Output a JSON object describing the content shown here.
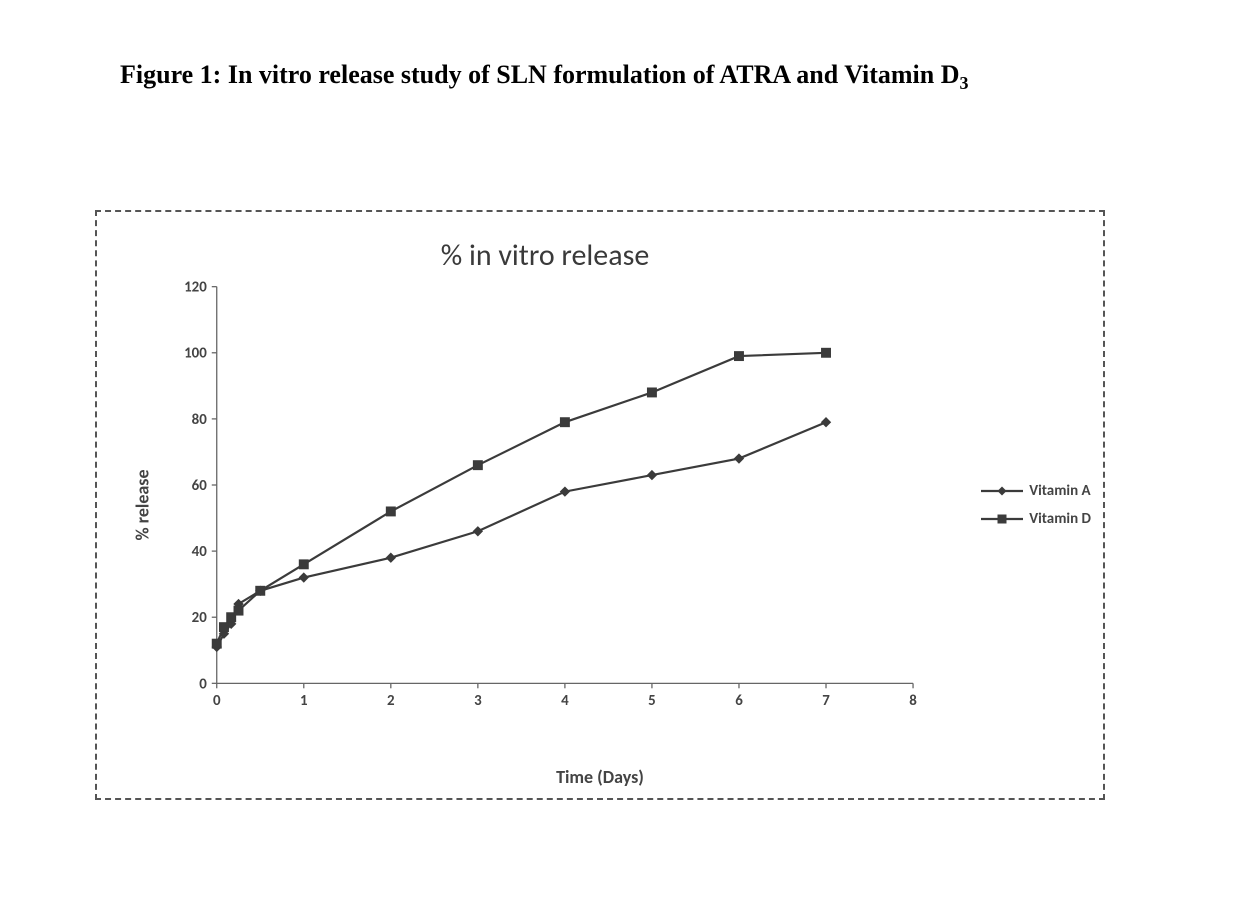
{
  "caption": {
    "prefix": "Figure 1: In vitro release study of SLN formulation of ATRA and Vitamin D",
    "subscript": "3"
  },
  "chart": {
    "type": "line",
    "title": "% in vitro release",
    "title_fontsize": 30,
    "xlabel": "Time (Days)",
    "ylabel": "% release",
    "label_fontsize": 18,
    "xlim": [
      0,
      8
    ],
    "ylim": [
      0,
      120
    ],
    "xtick_step": 1,
    "ytick_step": 20,
    "background_color": "#ffffff",
    "border_dash": "4 3",
    "axis_color": "#666666",
    "tick_length": 5,
    "series": [
      {
        "name": "Vitamin A",
        "marker": "diamond",
        "marker_size": 9,
        "line_width": 2.2,
        "color": "#3b3b3b",
        "x": [
          0,
          0.083,
          0.166,
          0.25,
          0.5,
          1,
          2,
          3,
          4,
          5,
          6,
          7
        ],
        "y": [
          11,
          15,
          18,
          24,
          28,
          32,
          38,
          46,
          58,
          63,
          68,
          79
        ]
      },
      {
        "name": "Vitamin D",
        "marker": "square",
        "marker_size": 9,
        "line_width": 2.2,
        "color": "#3b3b3b",
        "x": [
          0,
          0.083,
          0.166,
          0.25,
          0.5,
          1,
          2,
          3,
          4,
          5,
          6,
          7
        ],
        "y": [
          12,
          17,
          20,
          22,
          28,
          36,
          52,
          66,
          79,
          88,
          99,
          100
        ]
      }
    ],
    "legend": {
      "items": [
        "Vitamin A",
        "Vitamin D"
      ],
      "fontsize": 15,
      "position": "right-middle"
    }
  }
}
